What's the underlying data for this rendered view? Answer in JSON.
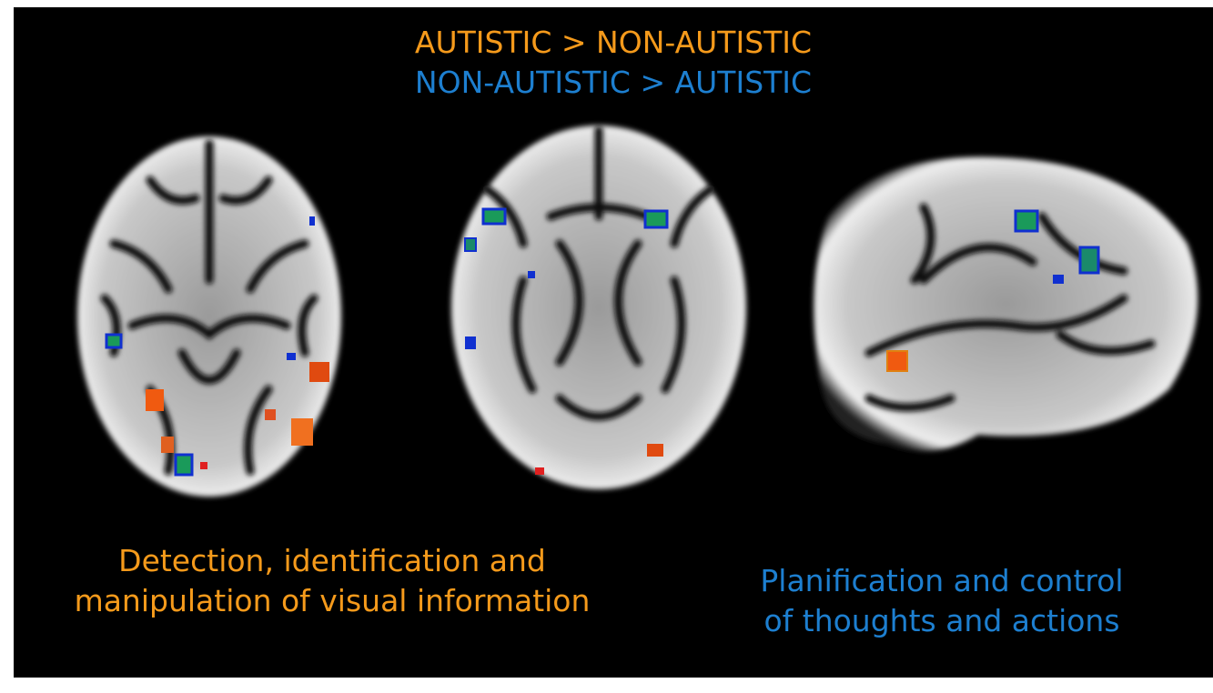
{
  "header": {
    "lines": [
      "AUTISTIC > NON-AUTISTIC",
      "NON-AUTISTIC > AUTISTIC"
    ]
  },
  "captions": [
    {
      "lines": [
        "Detection, identification and",
        "manipulation of visual information"
      ]
    },
    {
      "lines": [
        "Planification and control",
        "of thoughts and actions"
      ]
    }
  ]
}
